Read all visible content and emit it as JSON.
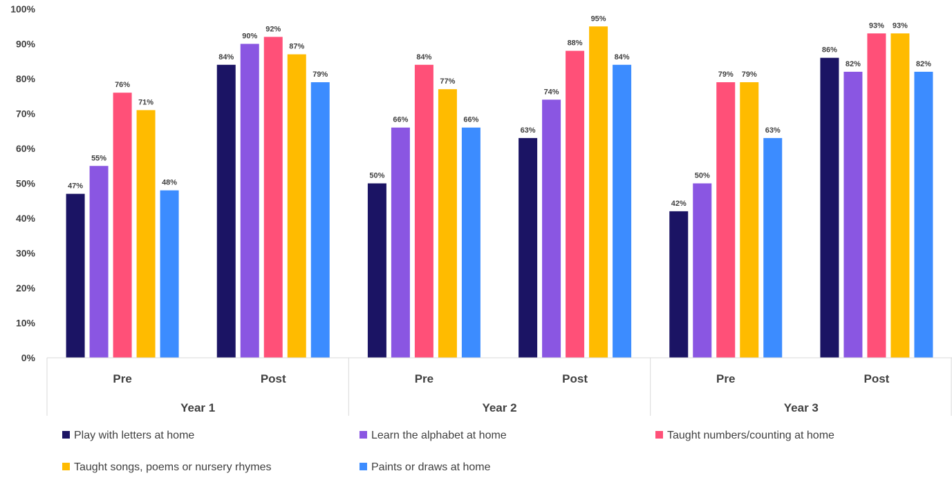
{
  "chart_data": {
    "type": "bar",
    "title": "",
    "xlabel": "",
    "ylabel": "",
    "ylim": [
      0,
      100
    ],
    "y_ticks": [
      "0%",
      "10%",
      "20%",
      "30%",
      "40%",
      "50%",
      "60%",
      "70%",
      "80%",
      "90%",
      "100%"
    ],
    "grid": false,
    "legend_position": "bottom",
    "value_suffix": "%",
    "categories": [
      "Pre",
      "Post",
      "Pre",
      "Post",
      "Pre",
      "Post"
    ],
    "groups": [
      "Year 1",
      "Year 2",
      "Year 3"
    ],
    "series": [
      {
        "name": "Play with letters at home",
        "color": "#1b1464",
        "values": [
          47,
          84,
          50,
          63,
          42,
          86
        ]
      },
      {
        "name": "Learn the alphabet at home",
        "color": "#8a56e2",
        "values": [
          55,
          90,
          66,
          74,
          50,
          82
        ]
      },
      {
        "name": "Taught numbers/counting at home",
        "color": "#ff5078",
        "values": [
          76,
          92,
          84,
          88,
          79,
          93
        ]
      },
      {
        "name": "Taught songs, poems or nursery rhymes",
        "color": "#ffbb00",
        "values": [
          71,
          87,
          77,
          95,
          79,
          93
        ]
      },
      {
        "name": "Paints or draws at home",
        "color": "#3c8cff",
        "values": [
          48,
          79,
          66,
          84,
          63,
          82
        ]
      }
    ]
  }
}
